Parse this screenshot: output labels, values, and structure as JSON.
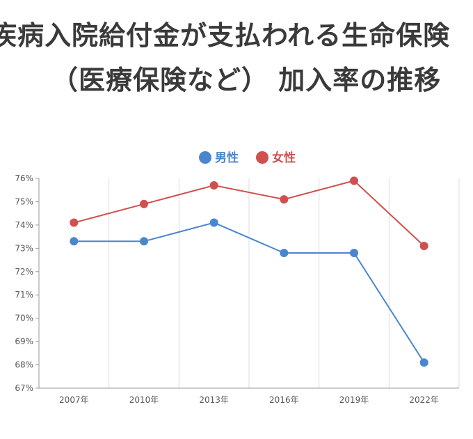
{
  "chart_data": {
    "type": "line",
    "title_lines": [
      "疾病入院給付金が支払われる生命保険",
      "（医療保険など） 加入率の推移"
    ],
    "categories": [
      "2007年",
      "2010年",
      "2013年",
      "2016年",
      "2019年",
      "2022年"
    ],
    "series": [
      {
        "name": "男性",
        "color": "#4a86cf",
        "values": [
          73.3,
          73.3,
          74.1,
          72.8,
          72.8,
          68.1
        ]
      },
      {
        "name": "女性",
        "color": "#d0504f",
        "values": [
          74.1,
          74.9,
          75.7,
          75.1,
          75.9,
          73.1
        ]
      }
    ],
    "ylim": [
      67,
      76
    ],
    "y_ticks": [
      "67%",
      "68%",
      "69%",
      "70%",
      "71%",
      "72%",
      "73%",
      "74%",
      "75%",
      "76%"
    ],
    "grid": true,
    "legend_position": "top"
  }
}
